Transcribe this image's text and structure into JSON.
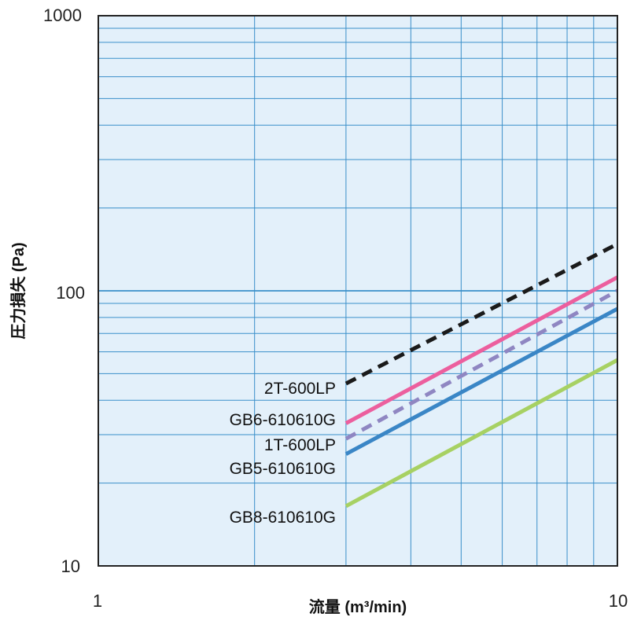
{
  "chart_data": {
    "type": "line",
    "xlabel": "流量 (m³/min)",
    "ylabel": "圧力損失 (Pa)",
    "xscale": "log",
    "yscale": "log",
    "xlim": [
      1,
      10
    ],
    "ylim": [
      10,
      1000
    ],
    "x_ticks": [
      "1",
      "10"
    ],
    "y_ticks": [
      "10",
      "100",
      "1000"
    ],
    "grid": true,
    "plot_background": "#e3f0fa",
    "grid_color": "#3a8fc9",
    "series": [
      {
        "name": "2T-600LP",
        "x": [
          3,
          10
        ],
        "y": [
          46,
          148
        ],
        "color": "#1a1a1a",
        "dash": true
      },
      {
        "name": "GB6-610610G",
        "x": [
          3,
          10
        ],
        "y": [
          33,
          112
        ],
        "color": "#ec5f9e",
        "dash": false
      },
      {
        "name": "1T-600LP",
        "x": [
          3,
          10
        ],
        "y": [
          29,
          100
        ],
        "color": "#8f86c2",
        "dash": true
      },
      {
        "name": "GB5-610610G",
        "x": [
          3,
          10
        ],
        "y": [
          25.5,
          86
        ],
        "color": "#3a86c6",
        "dash": false
      },
      {
        "name": "GB8-610610G",
        "x": [
          3,
          10
        ],
        "y": [
          16.5,
          56
        ],
        "color": "#a7d163",
        "dash": false
      }
    ]
  }
}
